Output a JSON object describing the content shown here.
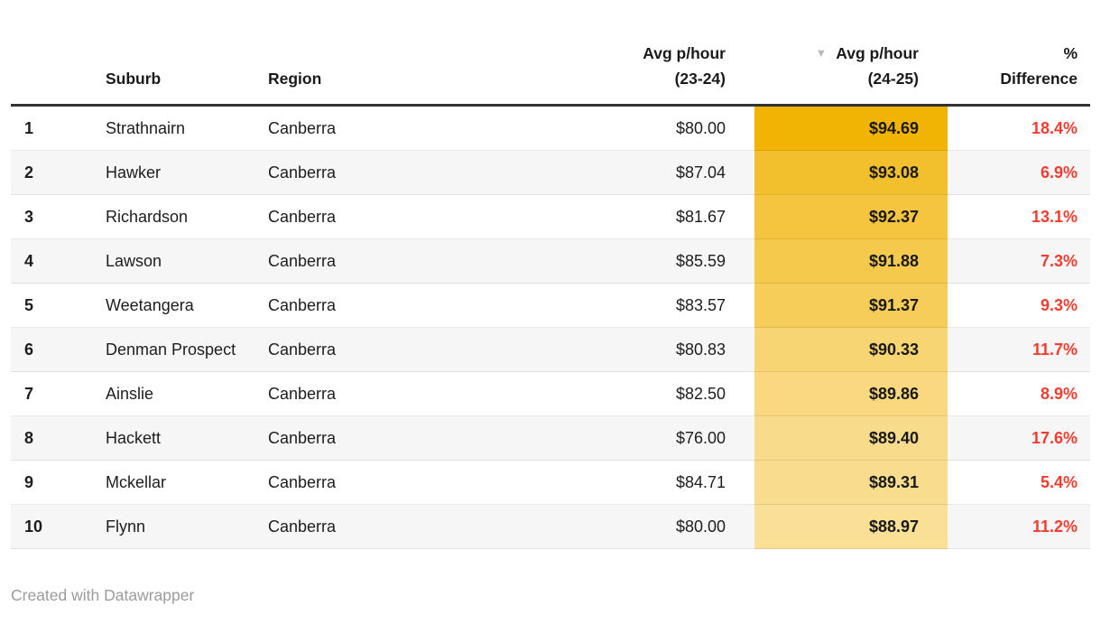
{
  "table": {
    "columns": {
      "rank": {
        "label": ""
      },
      "suburb": {
        "label": "Suburb"
      },
      "region": {
        "label": "Region"
      },
      "avg_23_24": {
        "label_line1": "Avg p/hour",
        "label_line2": "(23-24)"
      },
      "avg_24_25": {
        "label_line1": "Avg p/hour",
        "label_line2": "(24-25)",
        "sort_icon_glyph": "▼",
        "sort_state": "descending"
      },
      "pct_difference": {
        "label_line1": "%",
        "label_line2": "Difference"
      }
    },
    "rows": [
      {
        "rank": "1",
        "suburb": "Strathnairn",
        "region": "Canberra",
        "avg_23_24": "$80.00",
        "avg_24_25": "$94.69",
        "pct_difference": "18.4%",
        "highlight_color": "#F1B404"
      },
      {
        "rank": "2",
        "suburb": "Hawker",
        "region": "Canberra",
        "avg_23_24": "$87.04",
        "avg_24_25": "$93.08",
        "pct_difference": "6.9%",
        "highlight_color": "#F3C02D"
      },
      {
        "rank": "3",
        "suburb": "Richardson",
        "region": "Canberra",
        "avg_23_24": "$81.67",
        "avg_24_25": "$92.37",
        "pct_difference": "13.1%",
        "highlight_color": "#F5C53F"
      },
      {
        "rank": "4",
        "suburb": "Lawson",
        "region": "Canberra",
        "avg_23_24": "$85.59",
        "avg_24_25": "$91.88",
        "pct_difference": "7.3%",
        "highlight_color": "#F5C94C"
      },
      {
        "rank": "5",
        "suburb": "Weetangera",
        "region": "Canberra",
        "avg_23_24": "$83.57",
        "avg_24_25": "$91.37",
        "pct_difference": "9.3%",
        "highlight_color": "#F6CD59"
      },
      {
        "rank": "6",
        "suburb": "Denman Prospect",
        "region": "Canberra",
        "avg_23_24": "$80.83",
        "avg_24_25": "$90.33",
        "pct_difference": "11.7%",
        "highlight_color": "#F8D573"
      },
      {
        "rank": "7",
        "suburb": "Ainslie",
        "region": "Canberra",
        "avg_23_24": "$82.50",
        "avg_24_25": "$89.86",
        "pct_difference": "8.9%",
        "highlight_color": "#F9D87F"
      },
      {
        "rank": "8",
        "suburb": "Hackett",
        "region": "Canberra",
        "avg_23_24": "$76.00",
        "avg_24_25": "$89.40",
        "pct_difference": "17.6%",
        "highlight_color": "#F9DC8B"
      },
      {
        "rank": "9",
        "suburb": "Mckellar",
        "region": "Canberra",
        "avg_23_24": "$84.71",
        "avg_24_25": "$89.31",
        "pct_difference": "5.4%",
        "highlight_color": "#F9DC8D"
      },
      {
        "rank": "10",
        "suburb": "Flynn",
        "region": "Canberra",
        "avg_23_24": "$80.00",
        "avg_24_25": "$88.97",
        "pct_difference": "11.2%",
        "highlight_color": "#FADF96"
      }
    ]
  },
  "footer": {
    "attribution": "Created with Datawrapper"
  },
  "colors": {
    "highlight_max": "#F1B404",
    "highlight_min": "#FADF96",
    "difference_red": "#F23C30",
    "header_border": "#333333",
    "zebra_stripe": "#F6F6F6",
    "footer_gray": "#9B9B9B",
    "sort_icon_gray": "#BCBCBC"
  }
}
